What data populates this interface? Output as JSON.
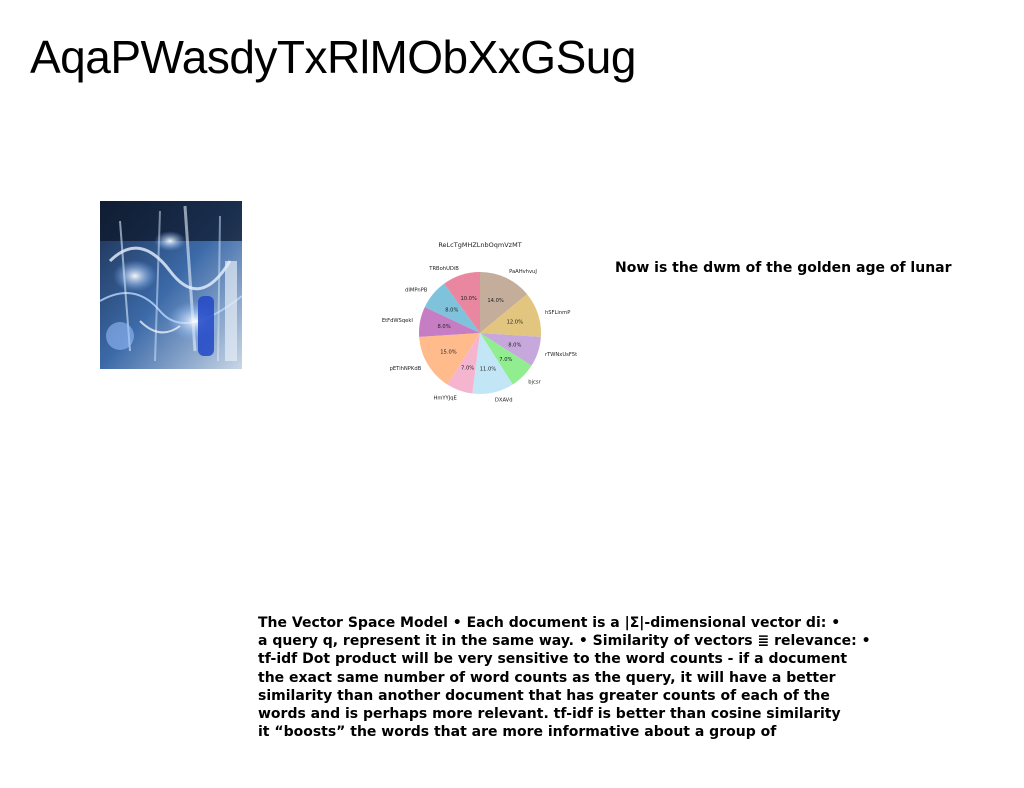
{
  "slide": {
    "title": "AqaPWasdyTxRlMObXxGSug",
    "caption": "Now is the dwm of the  golden age of lunar",
    "body": "The Vector Space Model • Each document is a |Σ|-dimensional vector di: •\na query q, represent it in the same way. • Similarity of vectors ≣ relevance: •\n tf-idf Dot product will be very sensitive to the word counts - if a document\nthe exact same number of word counts as the query, it will have a better\nsimilarity than another document that has greater counts of each of the\nwords and is perhaps more relevant. tf-idf is better than cosine similarity\nit “boosts” the words that are more informative about a group of"
  },
  "chart_data": {
    "type": "pie",
    "title": "ReLcTgMHZLnbOqmVzMT",
    "start_angle": 90,
    "direction": "clockwise",
    "slices": [
      {
        "label": "PaAHvhvuJ",
        "value": 14.0,
        "pct_text": "14.0%",
        "color": "#c4ad9b"
      },
      {
        "label": "hSFLinmP",
        "value": 12.0,
        "pct_text": "12.0%",
        "color": "#e2c57e"
      },
      {
        "label": "rTWNxUsF5t",
        "value": 8.0,
        "pct_text": "8.0%",
        "color": "#c7a8dc"
      },
      {
        "label": "bjcsr",
        "value": 7.0,
        "pct_text": "7.0%",
        "color": "#90ee90"
      },
      {
        "label": "DXAVd",
        "value": 11.0,
        "pct_text": "11.0%",
        "color": "#c3e6f7"
      },
      {
        "label": "HmYYJqE",
        "value": 7.0,
        "pct_text": "7.0%",
        "color": "#f5b5cf"
      },
      {
        "label": "pETihNPKdB",
        "value": 15.0,
        "pct_text": "15.0%",
        "color": "#ffbb8c"
      },
      {
        "label": "EtFdWSqekI",
        "value": 8.0,
        "pct_text": "8.0%",
        "color": "#c77dc4"
      },
      {
        "label": "dIMPnPB",
        "value": 8.0,
        "pct_text": "8.0%",
        "color": "#7fc2dc"
      },
      {
        "label": "TRBohUDiB",
        "value": 10.0,
        "pct_text": "10.0%",
        "color": "#e8879f"
      }
    ]
  }
}
